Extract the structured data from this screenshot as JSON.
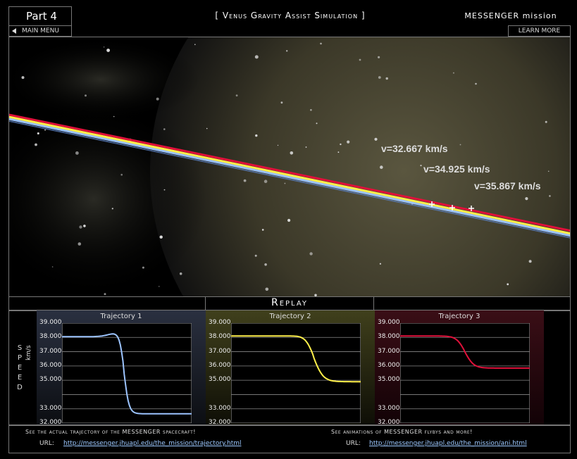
{
  "header": {
    "part": "Part 4",
    "title": "[ Venus Gravity Assist Simulation ]",
    "mission": "MESSENGER mission",
    "main_menu": "MAIN MENU",
    "learn_more": "LEARN MORE"
  },
  "sim": {
    "labels": [
      {
        "text": "v=32.667 km/s",
        "color": "#9cc4ff"
      },
      {
        "text": "v=34.925 km/s",
        "color": "#ffef4a"
      },
      {
        "text": "v=35.867 km/s",
        "color": "#e0103a"
      }
    ]
  },
  "replay": "Replay",
  "speed_axis": {
    "label": "SPEED",
    "unit": "km/s"
  },
  "chart_data": [
    {
      "type": "line",
      "title": "Trajectory 1",
      "ylim": [
        32.0,
        39.0
      ],
      "yticks": [
        "39.000",
        "38.000",
        "37.000",
        "36.000",
        "35.000",
        "33.000",
        "32.000"
      ],
      "series": [
        {
          "color": "#9cc4ff",
          "start": 38.05,
          "peak": 38.35,
          "end": 32.65
        }
      ]
    },
    {
      "type": "line",
      "title": "Trajectory 2",
      "ylim": [
        32.0,
        39.0
      ],
      "yticks": [
        "39.000",
        "38.000",
        "37.000",
        "36.000",
        "35.000",
        "33.000",
        "32.000"
      ],
      "series": [
        {
          "color": "#fff04a",
          "start": 38.1,
          "peak": 38.22,
          "end": 34.9
        }
      ]
    },
    {
      "type": "line",
      "title": "Trajectory 3",
      "ylim": [
        32.0,
        39.0
      ],
      "yticks": [
        "39.000",
        "38.000",
        "37.000",
        "36.000",
        "35.000",
        "33.000",
        "32.000"
      ],
      "series": [
        {
          "color": "#e0103a",
          "start": 38.1,
          "peak": 38.12,
          "end": 35.85
        }
      ]
    }
  ],
  "footer": {
    "left_note": "See the actual trajectory of the MESSENGER spacecraft!",
    "right_note": "See animations of MESSENGER flybys and more!",
    "url_label": "URL:",
    "left_url": "http://messenger.jhuapl.edu/the_mission/trajectory.html",
    "right_url": "http://messenger.jhuapl.edu/the_mission/ani.html"
  }
}
